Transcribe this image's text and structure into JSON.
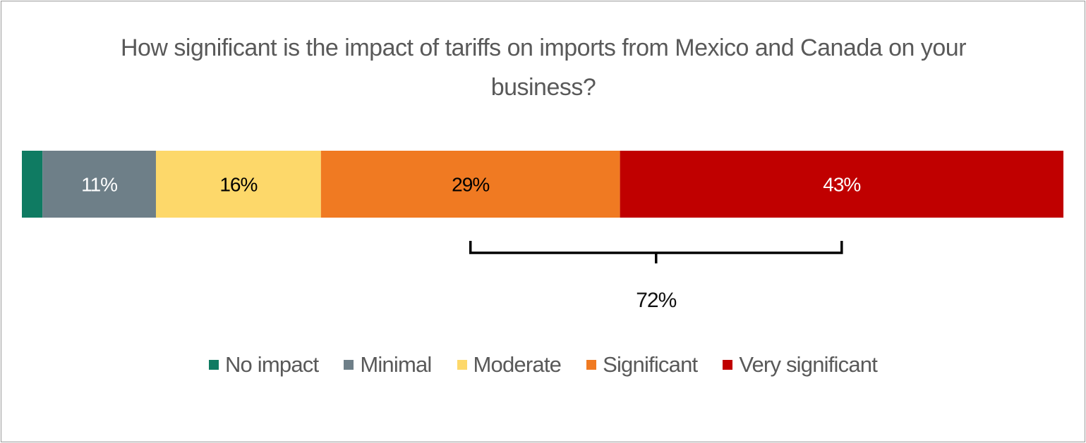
{
  "chart_data": {
    "type": "bar",
    "orientation": "horizontal-stacked-100",
    "title": "How significant is the impact of tariffs on imports from Mexico and Canada on your business?",
    "categories": [
      ""
    ],
    "series": [
      {
        "name": "No impact",
        "values": [
          2
        ],
        "color": "#0F7B62",
        "label": ""
      },
      {
        "name": "Minimal",
        "values": [
          11
        ],
        "color": "#6E7F88",
        "label": "11%",
        "label_color": "#ffffff"
      },
      {
        "name": "Moderate",
        "values": [
          16
        ],
        "color": "#FDD86A",
        "label": "16%",
        "label_color": "#000000"
      },
      {
        "name": "Significant",
        "values": [
          29
        ],
        "color": "#F07A22",
        "label": "29%",
        "label_color": "#000000"
      },
      {
        "name": "Very significant",
        "values": [
          43
        ],
        "color": "#C00000",
        "label": "43%",
        "label_color": "#ffffff"
      }
    ],
    "bracket": {
      "spans": [
        "Significant",
        "Very significant"
      ],
      "label": "72%"
    },
    "legend_position": "bottom",
    "grid": false
  }
}
